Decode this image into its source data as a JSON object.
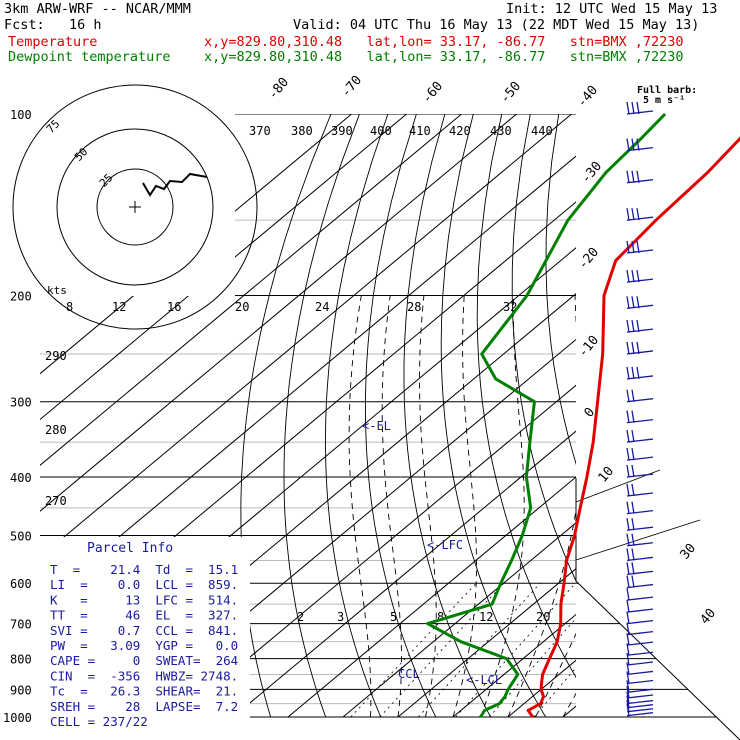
{
  "header": {
    "model": "3km ARW-WRF -- NCAR/MMM",
    "init": "Init: 12 UTC Wed 15 May 13",
    "fcst": "Fcst:   16 h",
    "valid": "Valid: 04 UTC Thu 16 May 13 (22 MDT Wed 15 May 13)",
    "temp_label": "Temperature",
    "dew_label": "Dewpoint temperature",
    "loc_info": "x,y=829.80,310.48   lat,lon= 33.17, -86.77   stn=BMX ,72230"
  },
  "legend": {
    "full_barb": "Full barb:",
    "barb_speed": "5 m s⁻¹"
  },
  "hodograph": {
    "units_label": "kts",
    "ring_labels": [
      "75",
      "50",
      "25"
    ],
    "speed_labels": [
      "8",
      "12",
      "16",
      "20",
      "24",
      "28",
      "32"
    ]
  },
  "annotations": {
    "el": "<-EL",
    "lfc": "<-LFC",
    "lcl": "<-LCL",
    "ccl": "CCL"
  },
  "parcel_info": {
    "title": "Parcel Info",
    "rows": [
      "T  =    21.4  Td  =  15.1",
      "LI  =    0.0  LCL =  859.",
      "K   =     13  LFC =  514.",
      "TT  =     46  EL  =  327.",
      "SVI =    0.7  CCL =  841.",
      "PW  =   3.09  YGP =   0.0",
      "CAPE =     0  SWEAT=  264",
      "CIN  =  -356  HWBZ= 2748.",
      "Tc  =   26.3  SHEAR=  21.",
      "SREH =    28  LAPSE=  7.2",
      "CELL = 237/22"
    ]
  },
  "chart_data": {
    "type": "line",
    "title": "",
    "xlabel": "",
    "ylabel": "",
    "y_axis": "pressure (hPa), log scale",
    "ylim": [
      1000,
      100
    ],
    "pressure_labels": [
      "100",
      "200",
      "300",
      "400",
      "500",
      "600",
      "700",
      "800",
      "900",
      "1000"
    ],
    "isotherm_labels": [
      "-80",
      "-70",
      "-60",
      "-50",
      "-40",
      "-30",
      "-20",
      "-10",
      "0",
      "10",
      "30",
      "40"
    ],
    "theta_labels": [
      "370",
      "380",
      "390",
      "400",
      "410",
      "420",
      "430",
      "440",
      "290",
      "280",
      "270"
    ],
    "mixing_ratio_labels": [
      "2",
      "3",
      "5",
      "8",
      "12",
      "20"
    ],
    "series": [
      {
        "name": "Temperature",
        "color": "#e00000",
        "points": [
          [
            1000,
            24.5
          ],
          [
            975,
            22.2
          ],
          [
            950,
            23.0
          ],
          [
            925,
            22.0
          ],
          [
            900,
            20.0
          ],
          [
            875,
            18.5
          ],
          [
            850,
            17.0
          ],
          [
            800,
            14.8
          ],
          [
            750,
            12.5
          ],
          [
            700,
            9.2
          ],
          [
            650,
            5.0
          ],
          [
            600,
            1.0
          ],
          [
            550,
            -3.5
          ],
          [
            500,
            -7.5
          ],
          [
            450,
            -12.5
          ],
          [
            400,
            -18.0
          ],
          [
            350,
            -24.5
          ],
          [
            300,
            -32.5
          ],
          [
            250,
            -42.0
          ],
          [
            200,
            -54.5
          ],
          [
            175,
            -60.0
          ],
          [
            150,
            -61.5
          ],
          [
            125,
            -62.5
          ],
          [
            110,
            -64.0
          ],
          [
            100,
            -65.5
          ]
        ]
      },
      {
        "name": "Dewpoint temperature",
        "color": "#008000",
        "points": [
          [
            1000,
            15.0
          ],
          [
            975,
            14.3
          ],
          [
            950,
            15.5
          ],
          [
            925,
            15.0
          ],
          [
            900,
            14.0
          ],
          [
            850,
            12.5
          ],
          [
            800,
            7.0
          ],
          [
            750,
            -5.0
          ],
          [
            700,
            -15.0
          ],
          [
            650,
            -7.5
          ],
          [
            600,
            -10.5
          ],
          [
            550,
            -13.5
          ],
          [
            500,
            -17.0
          ],
          [
            450,
            -21.5
          ],
          [
            400,
            -29.0
          ],
          [
            350,
            -36.0
          ],
          [
            300,
            -44.0
          ],
          [
            275,
            -56.0
          ],
          [
            250,
            -64.0
          ],
          [
            200,
            -68.5
          ],
          [
            150,
            -77.5
          ],
          [
            125,
            -81.0
          ],
          [
            110,
            -82.0
          ],
          [
            100,
            -83.0
          ]
        ]
      }
    ],
    "wind_barbs_pressure_hpa": [
      100,
      115,
      130,
      150,
      170,
      190,
      210,
      230,
      250,
      275,
      300,
      325,
      350,
      375,
      400,
      430,
      460,
      490,
      520,
      550,
      580,
      610,
      640,
      670,
      700,
      730,
      760,
      790,
      820,
      850,
      880,
      910,
      930,
      950,
      965,
      980,
      995
    ]
  }
}
